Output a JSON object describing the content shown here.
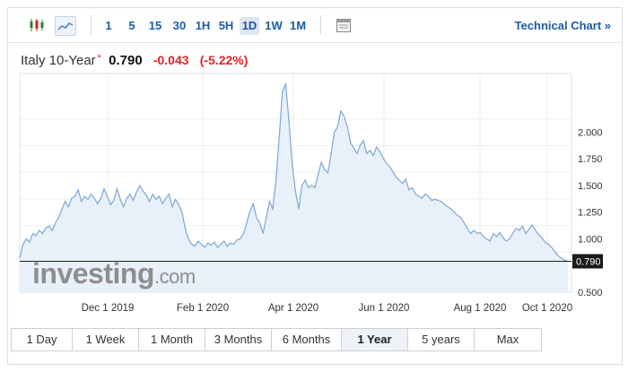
{
  "toolbar": {
    "icons": [
      "candlestick-icon",
      "line-chart-icon"
    ],
    "periods": [
      "1",
      "5",
      "15",
      "30",
      "1H",
      "5H",
      "1D",
      "1W",
      "1M"
    ],
    "active_period": "1D",
    "calendar_icon": "calendar-icon",
    "tech_link": "Technical Chart »"
  },
  "quote": {
    "name": "Italy 10-Year",
    "star": "*",
    "price": "0.790",
    "change": "-0.043",
    "change_pct": "(-5.22%)"
  },
  "watermark": {
    "text_bold": "investing",
    "text_light": ".com"
  },
  "chart_data": {
    "type": "area",
    "x_labels": [
      "Dec 1 2019",
      "Feb 1 2020",
      "Apr 1 2020",
      "Jun 1 2020",
      "Aug 1 2020",
      "Oct 1 2020"
    ],
    "y_ticks": [
      "0.500",
      "0.790",
      "1.000",
      "1.250",
      "1.500",
      "1.750",
      "2.000"
    ],
    "ylim": [
      0.5,
      2.55
    ],
    "last_value": "0.790",
    "line_color": "#7ca7d6",
    "fill_color": "#e8f0f9",
    "values": [
      0.82,
      0.95,
      1.0,
      0.97,
      1.05,
      1.03,
      1.08,
      1.05,
      1.1,
      1.12,
      1.08,
      1.15,
      1.2,
      1.28,
      1.35,
      1.3,
      1.38,
      1.4,
      1.46,
      1.35,
      1.4,
      1.37,
      1.42,
      1.38,
      1.33,
      1.38,
      1.47,
      1.4,
      1.32,
      1.36,
      1.47,
      1.37,
      1.3,
      1.38,
      1.42,
      1.36,
      1.44,
      1.5,
      1.45,
      1.41,
      1.35,
      1.42,
      1.37,
      1.4,
      1.33,
      1.38,
      1.42,
      1.3,
      1.37,
      1.32,
      1.25,
      1.1,
      1.0,
      0.95,
      0.93,
      0.98,
      0.95,
      0.92,
      0.96,
      0.94,
      0.97,
      0.92,
      0.95,
      0.98,
      0.93,
      0.96,
      0.95,
      0.99,
      1.0,
      1.05,
      1.15,
      1.26,
      1.33,
      1.2,
      1.15,
      1.05,
      1.2,
      1.35,
      1.28,
      1.55,
      1.95,
      2.38,
      2.45,
      2.1,
      1.7,
      1.45,
      1.28,
      1.5,
      1.55,
      1.48,
      1.5,
      1.48,
      1.6,
      1.72,
      1.65,
      1.62,
      1.8,
      2.0,
      2.05,
      2.2,
      2.15,
      2.05,
      1.9,
      1.85,
      1.8,
      1.88,
      1.92,
      1.8,
      1.83,
      1.78,
      1.86,
      1.82,
      1.76,
      1.71,
      1.68,
      1.63,
      1.58,
      1.55,
      1.52,
      1.56,
      1.46,
      1.48,
      1.42,
      1.4,
      1.38,
      1.42,
      1.4,
      1.36,
      1.37,
      1.36,
      1.35,
      1.32,
      1.3,
      1.28,
      1.25,
      1.22,
      1.2,
      1.15,
      1.1,
      1.05,
      1.08,
      1.05,
      1.06,
      1.02,
      1.0,
      0.98,
      1.05,
      1.02,
      1.06,
      1.01,
      0.98,
      1.0,
      1.05,
      1.1,
      1.08,
      1.12,
      1.05,
      1.09,
      1.13,
      1.08,
      1.04,
      1.01,
      0.97,
      0.95,
      0.92,
      0.88,
      0.84,
      0.82,
      0.8,
      0.79
    ]
  },
  "ranges": {
    "items": [
      "1 Day",
      "1 Week",
      "1 Month",
      "3 Months",
      "6 Months",
      "1 Year",
      "5 years",
      "Max"
    ],
    "active": "1 Year"
  }
}
